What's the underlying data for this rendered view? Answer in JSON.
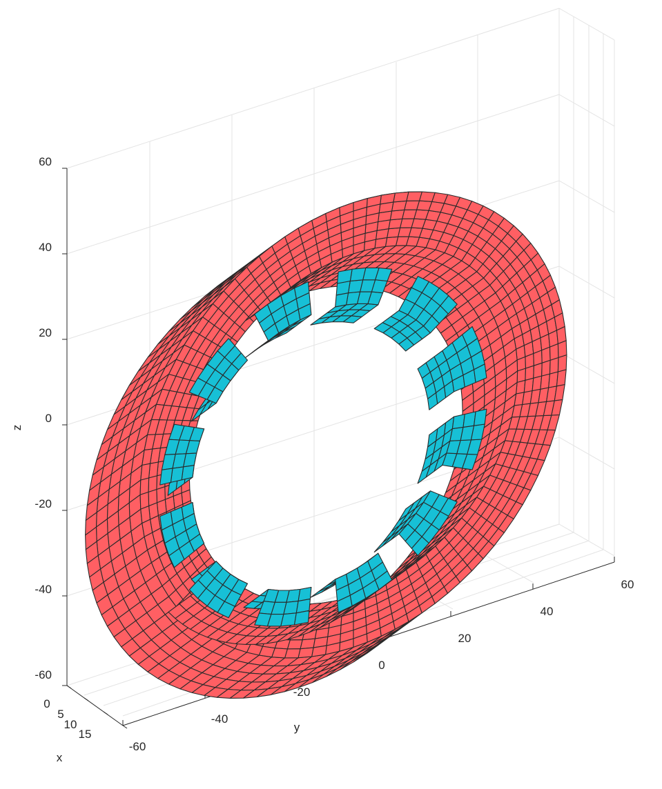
{
  "axes": {
    "x_label": "x",
    "y_label": "y",
    "z_label": "z",
    "x_ticks": [
      "0",
      "5",
      "10",
      "15"
    ],
    "y_ticks": [
      "-60",
      "-40",
      "-20",
      "0",
      "20",
      "40",
      "60"
    ],
    "z_ticks": [
      "60",
      "40",
      "20",
      "0",
      "-20",
      "-40",
      "-60"
    ],
    "grid": true,
    "box": "open"
  },
  "model": {
    "type": "meshed ring with blocks",
    "ring_color": "#ff5f63",
    "block_color": "#17c0d6",
    "edge_color": "#2a2a2a",
    "ring_outer_radius": 52,
    "ring_inner_radius": 40,
    "block_count": 12,
    "x_extent": [
      0,
      15
    ]
  }
}
